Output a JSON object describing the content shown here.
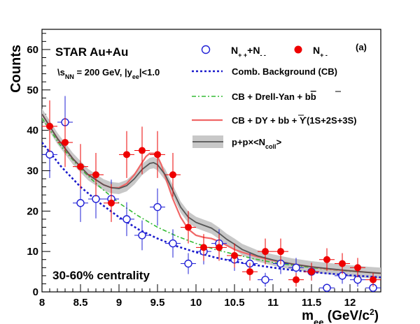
{
  "chart_data": {
    "type": "scatter",
    "xlabel": "m",
    "xlabel_sub": "ee",
    "xlabel_unit": " (GeV/c",
    "xlabel_unit_sup": "2",
    "xlabel_unit_close": ")",
    "ylabel": "Counts",
    "xlim": [
      8,
      12.4
    ],
    "ylim": [
      0,
      65
    ],
    "x_major_ticks": [
      8,
      8.5,
      9,
      9.5,
      10,
      10.5,
      11,
      11.5,
      12
    ],
    "x_tick_labels": [
      "8",
      "8.5",
      "9",
      "9.5",
      "10",
      "10.5",
      "11",
      "11.5",
      "12"
    ],
    "y_major_ticks": [
      0,
      10,
      20,
      30,
      40,
      50,
      60
    ],
    "y_tick_labels": [
      "0",
      "10",
      "20",
      "30",
      "40",
      "50",
      "60"
    ],
    "annotations": {
      "experiment": "STAR Au+Au",
      "energy_prefix": "\\s",
      "energy_sub": "NN",
      "energy_mid": " = 200 GeV, |y",
      "energy_sub2": "ee",
      "energy_suffix": "|<1.0",
      "centrality": "30-60% centrality",
      "panel": "(a)"
    },
    "legend": {
      "likesign": {
        "main": "N",
        "sub1": "+ +",
        "mid": "+N",
        "sub2": "- -"
      },
      "unlikesign": {
        "main": "N",
        "sub1": "+ -"
      },
      "cb": "Comb. Background (CB)",
      "dy": "CB + Drell-Yan + b",
      "dy_bar": "b",
      "full": "CB + DY + b",
      "full_bar": "b",
      "full_tail": " + ϒ(1S+2S+3S)",
      "pp": "p+p×<N",
      "pp_sub": "coll",
      "pp_close": ">"
    },
    "colors": {
      "likesign": "#1f1fd6",
      "unlikesign": "#ee0000",
      "cb": "#1a1acc",
      "dy": "#33bb33",
      "full": "#f06666",
      "pp_line": "#555555",
      "pp_band": "#c8c8c8"
    },
    "series": [
      {
        "name": "likesign",
        "x": [
          8.1,
          8.3,
          8.5,
          8.7,
          8.9,
          9.1,
          9.3,
          9.5,
          9.7,
          9.9,
          10.1,
          10.3,
          10.5,
          10.7,
          10.9,
          11.1,
          11.3,
          11.5,
          11.7,
          11.9,
          12.1,
          12.3
        ],
        "y": [
          34,
          42,
          22,
          23,
          23,
          18,
          14,
          21,
          12,
          7,
          10,
          12,
          8,
          7,
          3,
          7,
          6,
          5,
          1,
          4,
          3,
          1
        ],
        "err": [
          5.8,
          6.5,
          4.7,
          4.8,
          4.8,
          4.2,
          3.7,
          4.6,
          3.5,
          2.6,
          3.2,
          3.5,
          2.8,
          2.6,
          1.7,
          2.6,
          2.4,
          2.2,
          1.0,
          2.0,
          1.7,
          1.0
        ]
      },
      {
        "name": "unlikesign",
        "x": [
          8.1,
          8.3,
          8.5,
          8.7,
          8.9,
          9.1,
          9.3,
          9.5,
          9.7,
          9.9,
          10.1,
          10.3,
          10.5,
          10.7,
          10.9,
          11.1,
          11.3,
          11.5,
          11.7,
          11.9,
          12.1,
          12.3
        ],
        "y": [
          41,
          37,
          31,
          29,
          22,
          34,
          35,
          34,
          29,
          16,
          11,
          11,
          9,
          5,
          10,
          10,
          3,
          5,
          8,
          7,
          6,
          3
        ],
        "err": [
          6.4,
          6.1,
          5.6,
          5.4,
          4.7,
          5.8,
          5.9,
          5.8,
          5.4,
          4.0,
          3.3,
          3.3,
          3.0,
          2.2,
          3.2,
          3.2,
          1.7,
          2.2,
          2.8,
          2.6,
          2.4,
          1.7
        ]
      }
    ],
    "curves": {
      "cb": {
        "x": [
          8.0,
          8.25,
          8.5,
          8.75,
          9.0,
          9.25,
          9.5,
          9.75,
          10.0,
          10.25,
          10.5,
          10.75,
          11.0,
          11.25,
          11.5,
          11.75,
          12.0,
          12.25,
          12.4
        ],
        "y": [
          37.0,
          31.0,
          26.0,
          22.0,
          18.5,
          15.5,
          13.2,
          11.3,
          9.8,
          8.5,
          7.5,
          6.7,
          6.0,
          5.4,
          4.9,
          4.5,
          4.1,
          3.8,
          3.6
        ]
      },
      "dy": {
        "x": [
          8.0,
          8.25,
          8.5,
          8.75,
          9.0,
          9.25,
          9.5,
          9.75,
          10.0,
          10.25,
          10.5,
          10.75,
          11.0,
          11.25,
          11.5,
          11.75,
          12.0,
          12.25,
          12.4
        ],
        "y": [
          43.0,
          36.0,
          30.5,
          26.0,
          22.0,
          18.8,
          16.0,
          13.8,
          12.0,
          10.5,
          9.3,
          8.2,
          7.3,
          6.6,
          6.0,
          5.5,
          5.1,
          4.8,
          4.6
        ]
      },
      "full": {
        "x": [
          8.0,
          8.2,
          8.4,
          8.6,
          8.8,
          8.9,
          9.0,
          9.1,
          9.2,
          9.3,
          9.35,
          9.4,
          9.45,
          9.5,
          9.55,
          9.6,
          9.7,
          9.8,
          9.9,
          10.0,
          10.1,
          10.2,
          10.3,
          10.4,
          10.5,
          10.6,
          10.8,
          11.0,
          11.25,
          11.5,
          11.75,
          12.0,
          12.25,
          12.4
        ],
        "y": [
          44.0,
          38.0,
          33.0,
          29.0,
          26.5,
          25.8,
          25.8,
          26.8,
          29.0,
          32.0,
          33.5,
          34.3,
          34.3,
          33.5,
          31.5,
          28.5,
          23.0,
          18.5,
          15.5,
          14.0,
          13.5,
          13.2,
          12.5,
          11.5,
          10.5,
          9.8,
          8.7,
          7.8,
          6.9,
          6.2,
          5.6,
          5.2,
          4.8,
          4.6
        ]
      },
      "pp": {
        "x": [
          8.0,
          8.2,
          8.4,
          8.6,
          8.8,
          8.9,
          9.0,
          9.1,
          9.2,
          9.3,
          9.4,
          9.45,
          9.5,
          9.6,
          9.7,
          9.8,
          9.9,
          10.0,
          10.1,
          10.2,
          10.3,
          10.4,
          10.5,
          10.6,
          10.8,
          11.0,
          11.25,
          11.5,
          11.75,
          12.0,
          12.25,
          12.4
        ],
        "y": [
          44.0,
          38.0,
          33.0,
          29.0,
          26.5,
          25.8,
          25.6,
          26.3,
          28.0,
          30.3,
          31.8,
          32.0,
          31.5,
          29.0,
          25.0,
          21.0,
          18.5,
          17.2,
          16.5,
          15.8,
          14.5,
          13.0,
          11.8,
          10.5,
          8.9,
          7.9,
          6.9,
          6.2,
          5.7,
          5.2,
          4.8,
          4.6
        ],
        "band": 1.4
      }
    }
  }
}
